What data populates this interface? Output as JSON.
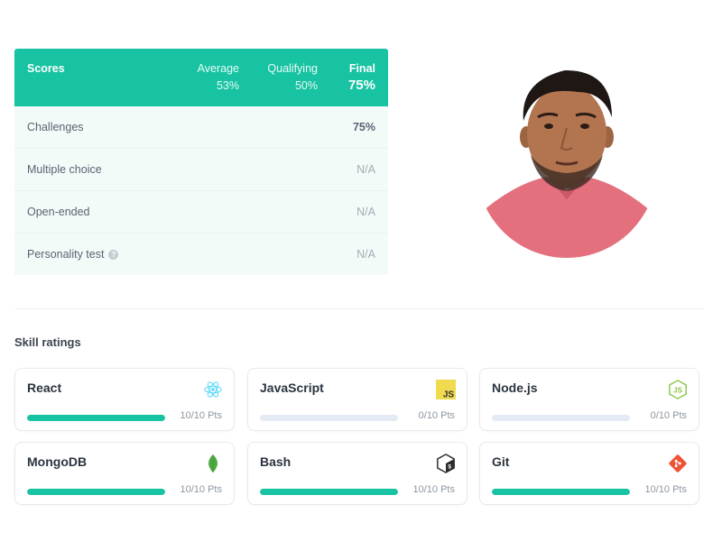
{
  "scores": {
    "title": "Scores",
    "average_label": "Average",
    "average_value": "53%",
    "qualifying_label": "Qualifying",
    "qualifying_value": "50%",
    "final_label": "Final",
    "final_value": "75%",
    "rows": [
      {
        "name": "Challenges",
        "value": "75%"
      },
      {
        "name": "Multiple choice",
        "value": "N/A"
      },
      {
        "name": "Open-ended",
        "value": "N/A"
      },
      {
        "name": "Personality test",
        "value": "N/A",
        "help_icon": "question-circle-icon"
      }
    ]
  },
  "skills": {
    "heading": "Skill ratings",
    "items": [
      {
        "name": "React",
        "points": "10/10 Pts",
        "progress": 1.0,
        "icon": "react-icon",
        "color": "#61dafb"
      },
      {
        "name": "JavaScript",
        "points": "0/10 Pts",
        "progress": 0.0,
        "icon": "javascript-icon",
        "color": "#f0db4f"
      },
      {
        "name": "Node.js",
        "points": "0/10 Pts",
        "progress": 0.0,
        "icon": "nodejs-icon",
        "color": "#8cc84b"
      },
      {
        "name": "MongoDB",
        "points": "10/10 Pts",
        "progress": 1.0,
        "icon": "mongodb-icon",
        "color": "#4fa942"
      },
      {
        "name": "Bash",
        "points": "10/10 Pts",
        "progress": 1.0,
        "icon": "bash-icon",
        "color": "#2b2b2b"
      },
      {
        "name": "Git",
        "points": "10/10 Pts",
        "progress": 1.0,
        "icon": "git-icon",
        "color": "#f05033"
      }
    ]
  },
  "colors": {
    "accent": "#17c3a2",
    "track": "#e5ebf4",
    "row_background": "#f3fbf9"
  }
}
